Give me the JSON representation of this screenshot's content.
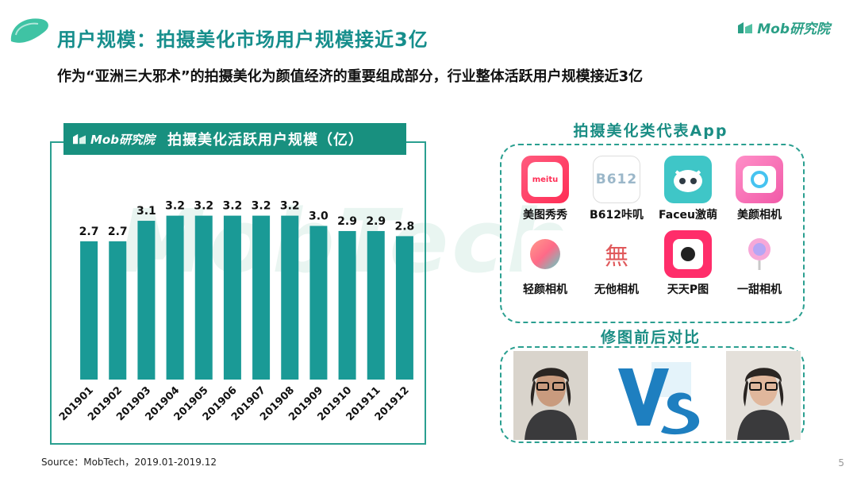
{
  "header": {
    "title": "用户规模：拍摄美化市场用户规模接近3亿",
    "subtitle": "作为“亚洲三大邪术”的拍摄美化为颜值经济的重要组成部分，行业整体活跃用户规模接近3亿"
  },
  "brand": {
    "name": "Mob研究院",
    "watermark": "MobTech"
  },
  "colors": {
    "bar": "#1a9a96",
    "title": "#168e8c",
    "header_bg": "#18907f",
    "border": "#2a9f90"
  },
  "chart_data": {
    "type": "bar",
    "title": "拍摄美化活跃用户规模（亿）",
    "categories": [
      "201901",
      "201902",
      "201903",
      "201904",
      "201905",
      "201906",
      "201907",
      "201908",
      "201909",
      "201910",
      "201911",
      "201912"
    ],
    "values": [
      2.7,
      2.7,
      3.1,
      3.2,
      3.2,
      3.2,
      3.2,
      3.2,
      3.0,
      2.9,
      2.9,
      2.8
    ],
    "value_labels": [
      "2.7",
      "2.7",
      "3.1",
      "3.2",
      "3.2",
      "3.2",
      "3.2",
      "3.2",
      "3.0",
      "2.9",
      "2.9",
      "2.8"
    ],
    "xlabel": "",
    "ylabel": "",
    "grid": false,
    "legend": false
  },
  "apps_section": {
    "heading": "拍摄美化类代表App",
    "apps": [
      {
        "name": "美图秀秀",
        "icon": "meitu-icon",
        "icon_text": "meitu"
      },
      {
        "name": "B612咔叽",
        "icon": "b612-icon",
        "icon_text": "B612"
      },
      {
        "name": "Faceu激萌",
        "icon": "faceu-icon"
      },
      {
        "name": "美颜相机",
        "icon": "beauty-camera-icon"
      },
      {
        "name": "轻颜相机",
        "icon": "qingyan-camera-icon"
      },
      {
        "name": "无他相机",
        "icon": "wuta-camera-icon",
        "icon_text": "無"
      },
      {
        "name": "天天P图",
        "icon": "tiantian-ptu-icon"
      },
      {
        "name": "一甜相机",
        "icon": "yitian-camera-icon"
      }
    ]
  },
  "compare_section": {
    "heading": "修图前后对比",
    "vs_text": "VS"
  },
  "footer": {
    "source": "Source：MobTech，2019.01-2019.12",
    "page_number": "5"
  }
}
